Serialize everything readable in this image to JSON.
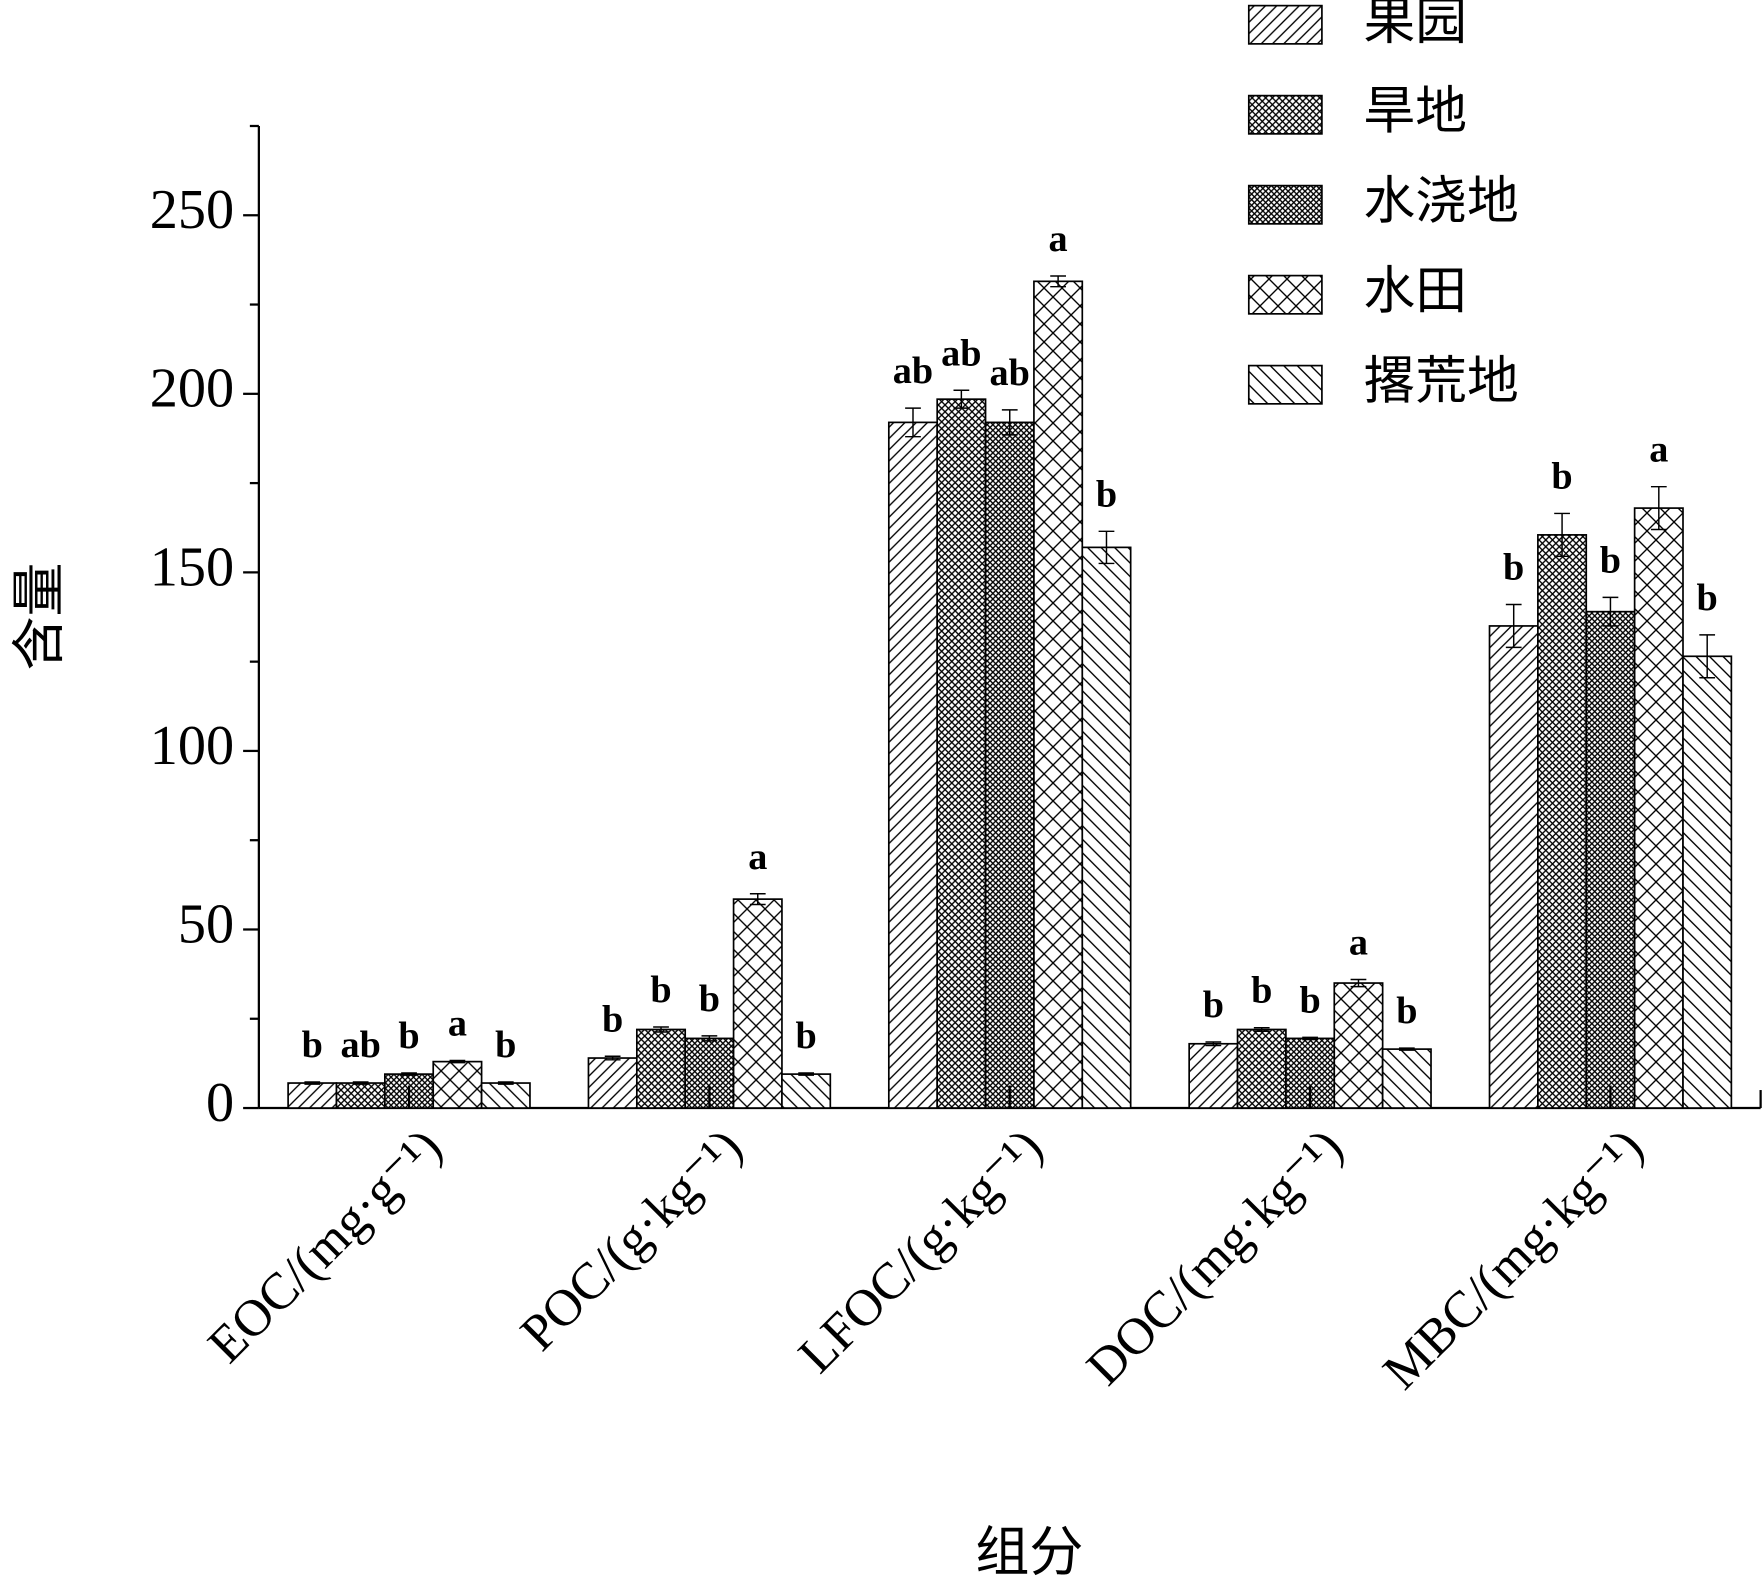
{
  "chart_data": {
    "type": "bar",
    "ylabel": "含量",
    "xlabel": "组分",
    "categories": [
      "EOC/(mg·g⁻¹)",
      "POC/(g·kg⁻¹)",
      "LFOC/(g·kg⁻¹)",
      "DOC/(mg·kg⁻¹)",
      "MBC/(mg·kg⁻¹)"
    ],
    "ylim": [
      0,
      275
    ],
    "yticks": [
      0,
      50,
      100,
      150,
      200,
      250
    ],
    "minor_yticks": [
      25,
      75,
      125,
      175,
      225,
      275
    ],
    "series": [
      {
        "name": "果园",
        "color": "#000000",
        "pattern": "diagonal",
        "values": [
          7,
          14,
          192,
          18,
          135
        ],
        "errors": [
          0.3,
          0.5,
          4,
          0.5,
          6
        ],
        "letters": [
          "b",
          "b",
          "ab",
          "b",
          "b"
        ]
      },
      {
        "name": "旱地",
        "color": "#000000",
        "pattern": "fine-cross",
        "values": [
          7,
          22,
          198.5,
          22,
          160.5
        ],
        "errors": [
          0.3,
          0.7,
          2.5,
          0.5,
          6
        ],
        "letters": [
          "ab",
          "b",
          "ab",
          "b",
          "b"
        ]
      },
      {
        "name": "水浇地",
        "color": "#000000",
        "pattern": "dense-cross",
        "values": [
          9.5,
          19.5,
          192,
          19.5,
          139
        ],
        "errors": [
          0.3,
          0.7,
          3.5,
          0.3,
          4
        ],
        "letters": [
          "b",
          "b",
          "ab",
          "b",
          "b"
        ]
      },
      {
        "name": "水田",
        "color": "#000000",
        "pattern": "wide-cross",
        "values": [
          13,
          58.5,
          231.5,
          35,
          168
        ],
        "errors": [
          0.3,
          1.5,
          1.5,
          1,
          6
        ],
        "letters": [
          "a",
          "a",
          "a",
          "a",
          "a"
        ]
      },
      {
        "name": "撂荒地",
        "color": "#000000",
        "pattern": "back-diagonal",
        "values": [
          7,
          9.5,
          157,
          16.5,
          126.5
        ],
        "errors": [
          0.3,
          0.3,
          4.5,
          0.3,
          6
        ],
        "letters": [
          "b",
          "b",
          "b",
          "b",
          "b"
        ]
      }
    ]
  }
}
